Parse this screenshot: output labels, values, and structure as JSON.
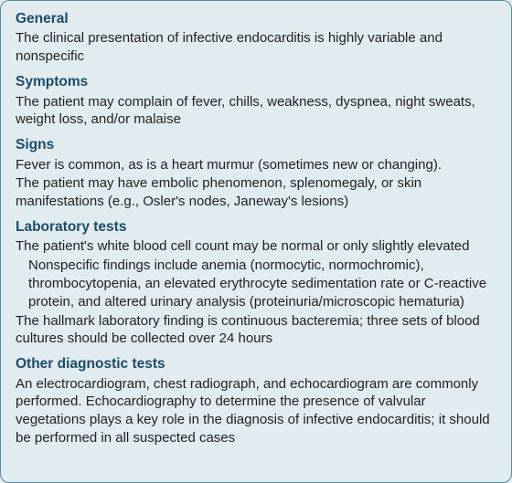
{
  "panel": {
    "background_color": "#e0ecef",
    "border_color": "#5b8a9a",
    "heading_color": "#1e4c66",
    "text_color": "#222222"
  },
  "sections": {
    "general": {
      "heading": "General",
      "body1": "The clinical presentation of infective endocarditis is highly variable and nonspecific"
    },
    "symptoms": {
      "heading": "Symptoms",
      "body1": "The patient may complain of fever, chills, weakness, dyspnea, night sweats, weight loss, and/or malaise"
    },
    "signs": {
      "heading": "Signs",
      "body1": "Fever is common, as is a heart murmur (sometimes new or changing).",
      "body2": "The patient may have embolic phenomenon, splenomegaly, or skin manifestations (e.g., Osler's nodes, Janeway's lesions)"
    },
    "labtests": {
      "heading": "Laboratory tests",
      "body1": "The patient's white blood cell count may be normal or only slightly elevated",
      "body2": "Nonspecific findings include anemia (normocytic, normochromic), thrombocytopenia, an elevated erythrocyte sedimentation rate or C-reactive protein, and altered urinary analysis (proteinuria/microscopic hematuria)",
      "body3": "The hallmark laboratory finding is continuous bacteremia; three sets of blood cultures should be collected over 24 hours"
    },
    "otherdx": {
      "heading": "Other diagnostic tests",
      "body1": "An electrocardiogram, chest radiograph, and echocardiogram are commonly performed. Echocardiography to determine the presence of valvular vegetations plays a key role in the diagnosis of infective endocarditis; it should be performed in all suspected cases"
    }
  }
}
